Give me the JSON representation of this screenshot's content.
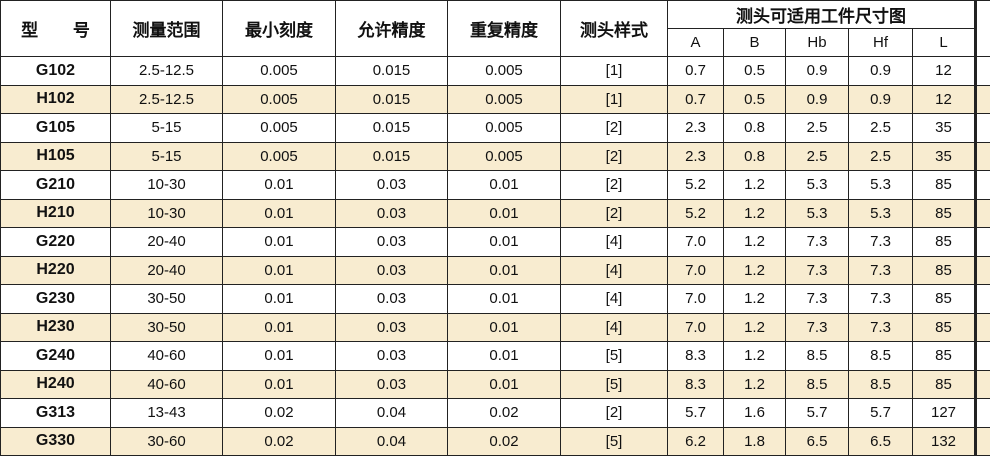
{
  "header": {
    "columns": [
      "型 号",
      "测量范围",
      "最小刻度",
      "允许精度",
      "重复精度",
      "测头样式"
    ],
    "group": "测头可适用工件尺寸图",
    "sub": [
      "A",
      "B",
      "Hb",
      "Hf",
      "L"
    ]
  },
  "table": {
    "rows": [
      [
        "G102",
        "2.5-12.5",
        "0.005",
        "0.015",
        "0.005",
        "[1]",
        "0.7",
        "0.5",
        "0.9",
        "0.9",
        "12"
      ],
      [
        "H102",
        "2.5-12.5",
        "0.005",
        "0.015",
        "0.005",
        "[1]",
        "0.7",
        "0.5",
        "0.9",
        "0.9",
        "12"
      ],
      [
        "G105",
        "5-15",
        "0.005",
        "0.015",
        "0.005",
        "[2]",
        "2.3",
        "0.8",
        "2.5",
        "2.5",
        "35"
      ],
      [
        "H105",
        "5-15",
        "0.005",
        "0.015",
        "0.005",
        "[2]",
        "2.3",
        "0.8",
        "2.5",
        "2.5",
        "35"
      ],
      [
        "G210",
        "10-30",
        "0.01",
        "0.03",
        "0.01",
        "[2]",
        "5.2",
        "1.2",
        "5.3",
        "5.3",
        "85"
      ],
      [
        "H210",
        "10-30",
        "0.01",
        "0.03",
        "0.01",
        "[2]",
        "5.2",
        "1.2",
        "5.3",
        "5.3",
        "85"
      ],
      [
        "G220",
        "20-40",
        "0.01",
        "0.03",
        "0.01",
        "[4]",
        "7.0",
        "1.2",
        "7.3",
        "7.3",
        "85"
      ],
      [
        "H220",
        "20-40",
        "0.01",
        "0.03",
        "0.01",
        "[4]",
        "7.0",
        "1.2",
        "7.3",
        "7.3",
        "85"
      ],
      [
        "G230",
        "30-50",
        "0.01",
        "0.03",
        "0.01",
        "[4]",
        "7.0",
        "1.2",
        "7.3",
        "7.3",
        "85"
      ],
      [
        "H230",
        "30-50",
        "0.01",
        "0.03",
        "0.01",
        "[4]",
        "7.0",
        "1.2",
        "7.3",
        "7.3",
        "85"
      ],
      [
        "G240",
        "40-60",
        "0.01",
        "0.03",
        "0.01",
        "[5]",
        "8.3",
        "1.2",
        "8.5",
        "8.5",
        "85"
      ],
      [
        "H240",
        "40-60",
        "0.01",
        "0.03",
        "0.01",
        "[5]",
        "8.3",
        "1.2",
        "8.5",
        "8.5",
        "85"
      ],
      [
        "G313",
        "13-43",
        "0.02",
        "0.04",
        "0.02",
        "[2]",
        "5.7",
        "1.6",
        "5.7",
        "5.7",
        "127"
      ],
      [
        "G330",
        "30-60",
        "0.02",
        "0.04",
        "0.02",
        "[5]",
        "6.2",
        "1.8",
        "6.5",
        "6.5",
        "132"
      ]
    ]
  }
}
